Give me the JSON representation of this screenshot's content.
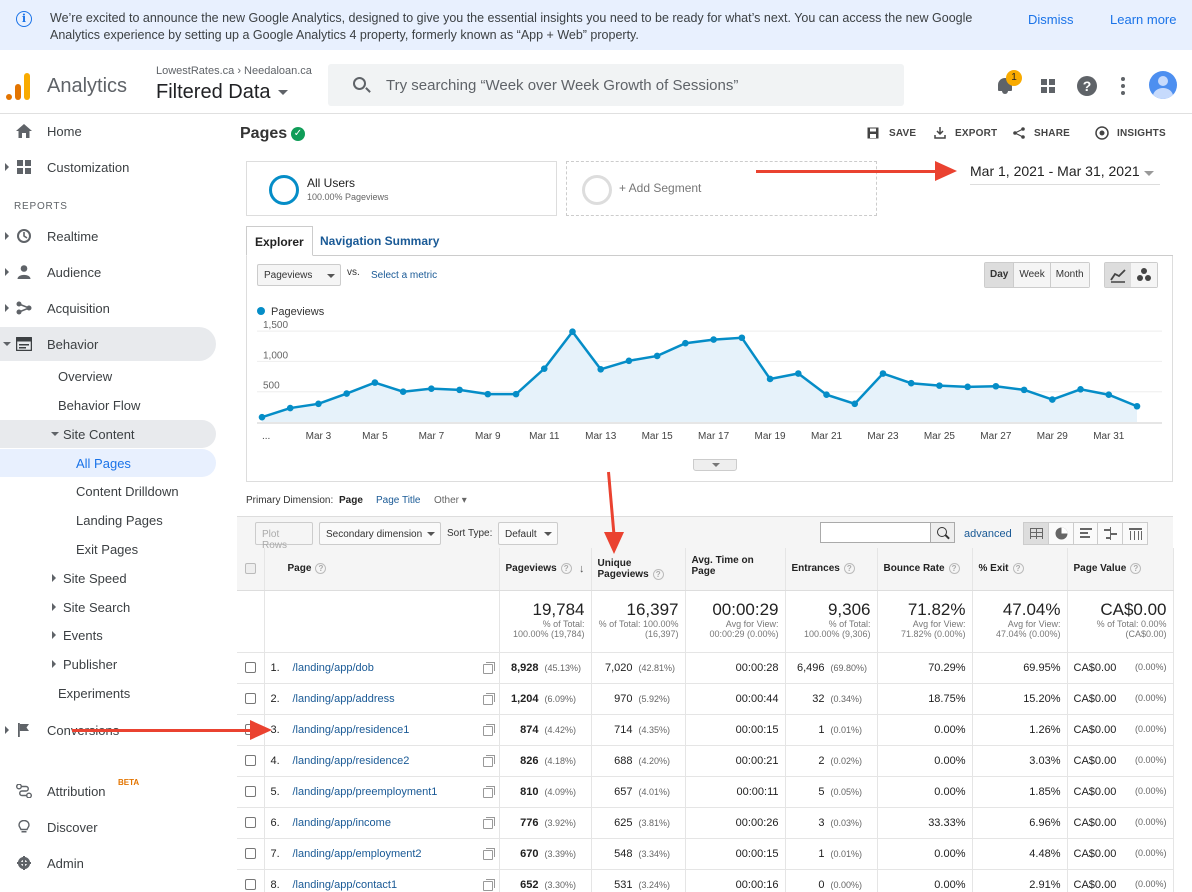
{
  "banner": {
    "message": "We’re excited to announce the new Google Analytics, designed to give you the essential insights you need to be ready for what’s next. You can access the new Google Analytics experience by setting up a Google Analytics 4 property, formerly known as “App + Web” property.",
    "dismiss": "Dismiss",
    "learn_more": "Learn more"
  },
  "header": {
    "app_name": "Analytics",
    "account_path": "LowestRates.ca  ›  Needaloan.ca",
    "view_name": "Filtered Data",
    "search_placeholder": "Try searching “Week over Week Growth of Sessions”",
    "notification_count": "1"
  },
  "sidebar": {
    "home": "Home",
    "customization": "Customization",
    "reports_label": "REPORTS",
    "realtime": "Realtime",
    "audience": "Audience",
    "acquisition": "Acquisition",
    "behavior": "Behavior",
    "behavior_items": {
      "overview": "Overview",
      "behavior_flow": "Behavior Flow",
      "site_content": "Site Content",
      "all_pages": "All Pages",
      "content_drilldown": "Content Drilldown",
      "landing_pages": "Landing Pages",
      "exit_pages": "Exit Pages",
      "site_speed": "Site Speed",
      "site_search": "Site Search",
      "events": "Events",
      "publisher": "Publisher",
      "experiments": "Experiments"
    },
    "conversions": "Conversions",
    "attribution": "Attribution",
    "attribution_badge": "BETA",
    "discover": "Discover",
    "admin": "Admin"
  },
  "main": {
    "title": "Pages",
    "toolbar": {
      "save": "SAVE",
      "export": "EXPORT",
      "share": "SHARE",
      "insights": "INSIGHTS"
    },
    "segment": {
      "name": "All Users",
      "sub": "100.00% Pageviews",
      "add": "+ Add Segment"
    },
    "date_range": "Mar 1, 2021 - Mar 31, 2021",
    "tabs": {
      "explorer": "Explorer",
      "navigation_summary": "Navigation Summary"
    },
    "chart_controls": {
      "metric": "Pageviews",
      "vs": "vs.",
      "select_metric": "Select a metric",
      "periods": [
        "Day",
        "Week",
        "Month"
      ],
      "active_period": "Day"
    },
    "primary_dimension": {
      "label": "Primary Dimension:",
      "current": "Page",
      "alt": "Page Title",
      "other": "Other"
    },
    "table_controls": {
      "plot_rows": "Plot Rows",
      "secondary_dimension": "Secondary dimension",
      "sort_type_label": "Sort Type:",
      "sort_type": "Default",
      "advanced": "advanced"
    },
    "columns": {
      "page": "Page",
      "pageviews": "Pageviews",
      "unique_pageviews_1": "Unique",
      "unique_pageviews_2": "Pageviews",
      "avg_time": "Avg. Time on Page",
      "entrances": "Entrances",
      "bounce_rate": "Bounce Rate",
      "exit": "% Exit",
      "page_value": "Page Value"
    },
    "totals": {
      "pageviews": "19,784",
      "pageviews_sub": "% of Total: 100.00% (19,784)",
      "unique": "16,397",
      "unique_sub": "% of Total: 100.00% (16,397)",
      "avg_time": "00:00:29",
      "avg_time_sub": "Avg for View: 00:00:29 (0.00%)",
      "entrances": "9,306",
      "entrances_sub": "% of Total: 100.00% (9,306)",
      "bounce": "71.82%",
      "bounce_sub": "Avg for View: 71.82% (0.00%)",
      "exit": "47.04%",
      "exit_sub": "Avg for View: 47.04% (0.00%)",
      "value": "CA$0.00",
      "value_sub": "% of Total: 0.00% (CA$0.00)"
    },
    "rows": [
      {
        "idx": "1.",
        "page": "/landing/app/dob",
        "pv": "8,928",
        "pv_pct": "(45.13%)",
        "upv": "7,020",
        "upv_pct": "(42.81%)",
        "time": "00:00:28",
        "ent": "6,496",
        "ent_pct": "(69.80%)",
        "bounce": "70.29%",
        "exit": "69.95%",
        "value": "CA$0.00",
        "value_pct": "(0.00%)"
      },
      {
        "idx": "2.",
        "page": "/landing/app/address",
        "pv": "1,204",
        "pv_pct": "(6.09%)",
        "upv": "970",
        "upv_pct": "(5.92%)",
        "time": "00:00:44",
        "ent": "32",
        "ent_pct": "(0.34%)",
        "bounce": "18.75%",
        "exit": "15.20%",
        "value": "CA$0.00",
        "value_pct": "(0.00%)"
      },
      {
        "idx": "3.",
        "page": "/landing/app/residence1",
        "pv": "874",
        "pv_pct": "(4.42%)",
        "upv": "714",
        "upv_pct": "(4.35%)",
        "time": "00:00:15",
        "ent": "1",
        "ent_pct": "(0.01%)",
        "bounce": "0.00%",
        "exit": "1.26%",
        "value": "CA$0.00",
        "value_pct": "(0.00%)"
      },
      {
        "idx": "4.",
        "page": "/landing/app/residence2",
        "pv": "826",
        "pv_pct": "(4.18%)",
        "upv": "688",
        "upv_pct": "(4.20%)",
        "time": "00:00:21",
        "ent": "2",
        "ent_pct": "(0.02%)",
        "bounce": "0.00%",
        "exit": "3.03%",
        "value": "CA$0.00",
        "value_pct": "(0.00%)"
      },
      {
        "idx": "5.",
        "page": "/landing/app/preemployment1",
        "pv": "810",
        "pv_pct": "(4.09%)",
        "upv": "657",
        "upv_pct": "(4.01%)",
        "time": "00:00:11",
        "ent": "5",
        "ent_pct": "(0.05%)",
        "bounce": "0.00%",
        "exit": "1.85%",
        "value": "CA$0.00",
        "value_pct": "(0.00%)"
      },
      {
        "idx": "6.",
        "page": "/landing/app/income",
        "pv": "776",
        "pv_pct": "(3.92%)",
        "upv": "625",
        "upv_pct": "(3.81%)",
        "time": "00:00:26",
        "ent": "3",
        "ent_pct": "(0.03%)",
        "bounce": "33.33%",
        "exit": "6.96%",
        "value": "CA$0.00",
        "value_pct": "(0.00%)"
      },
      {
        "idx": "7.",
        "page": "/landing/app/employment2",
        "pv": "670",
        "pv_pct": "(3.39%)",
        "upv": "548",
        "upv_pct": "(3.34%)",
        "time": "00:00:15",
        "ent": "1",
        "ent_pct": "(0.01%)",
        "bounce": "0.00%",
        "exit": "4.48%",
        "value": "CA$0.00",
        "value_pct": "(0.00%)"
      },
      {
        "idx": "8.",
        "page": "/landing/app/contact1",
        "pv": "652",
        "pv_pct": "(3.30%)",
        "upv": "531",
        "upv_pct": "(3.24%)",
        "time": "00:00:16",
        "ent": "0",
        "ent_pct": "(0.00%)",
        "bounce": "0.00%",
        "exit": "2.91%",
        "value": "CA$0.00",
        "value_pct": "(0.00%)"
      }
    ]
  },
  "chart_data": {
    "type": "area",
    "series": [
      {
        "name": "Pageviews",
        "values": [
          80,
          230,
          300,
          470,
          650,
          500,
          550,
          530,
          460,
          460,
          880,
          1490,
          870,
          1010,
          1090,
          1300,
          1360,
          1390,
          710,
          800,
          450,
          300,
          800,
          640,
          600,
          580,
          590,
          530,
          370,
          540,
          450,
          260
        ]
      }
    ],
    "x_tick_labels": [
      "...",
      "Mar 3",
      "Mar 5",
      "Mar 7",
      "Mar 9",
      "Mar 11",
      "Mar 13",
      "Mar 15",
      "Mar 17",
      "Mar 19",
      "Mar 21",
      "Mar 23",
      "Mar 25",
      "Mar 27",
      "Mar 29",
      "Mar 31"
    ],
    "y_ticks": [
      500,
      1000,
      1500
    ],
    "ylim": [
      0,
      1650
    ],
    "colors": {
      "line": "#058dc7",
      "fill": "#e6f2fa"
    },
    "legend_position": "top-left"
  },
  "colors": {
    "accent": "#1a73e8",
    "link": "#1a5a96",
    "annotation": "#ea4230"
  }
}
